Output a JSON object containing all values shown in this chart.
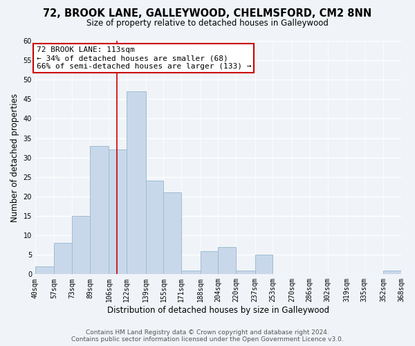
{
  "title": "72, BROOK LANE, GALLEYWOOD, CHELMSFORD, CM2 8NN",
  "subtitle": "Size of property relative to detached houses in Galleywood",
  "xlabel": "Distribution of detached houses by size in Galleywood",
  "ylabel": "Number of detached properties",
  "bar_color": "#c8d8ea",
  "bar_edge_color": "#a0bcd0",
  "bin_edges": [
    40,
    57,
    73,
    89,
    106,
    122,
    139,
    155,
    171,
    188,
    204,
    220,
    237,
    253,
    270,
    286,
    302,
    319,
    335,
    352,
    368
  ],
  "bin_labels": [
    "40sqm",
    "57sqm",
    "73sqm",
    "89sqm",
    "106sqm",
    "122sqm",
    "139sqm",
    "155sqm",
    "171sqm",
    "188sqm",
    "204sqm",
    "220sqm",
    "237sqm",
    "253sqm",
    "270sqm",
    "286sqm",
    "302sqm",
    "319sqm",
    "335sqm",
    "352sqm",
    "368sqm"
  ],
  "counts": [
    2,
    8,
    15,
    33,
    32,
    47,
    24,
    21,
    1,
    6,
    7,
    1,
    5,
    0,
    0,
    0,
    0,
    0,
    0,
    1
  ],
  "marker_value": 113,
  "marker_label": "72 BROOK LANE: 113sqm",
  "annotation_line1": "← 34% of detached houses are smaller (68)",
  "annotation_line2": "66% of semi-detached houses are larger (133) →",
  "annotation_box_color": "#ffffff",
  "annotation_box_edgecolor": "#cc0000",
  "marker_line_color": "#cc0000",
  "ylim": [
    0,
    60
  ],
  "yticks": [
    0,
    5,
    10,
    15,
    20,
    25,
    30,
    35,
    40,
    45,
    50,
    55,
    60
  ],
  "footer_line1": "Contains HM Land Registry data © Crown copyright and database right 2024.",
  "footer_line2": "Contains public sector information licensed under the Open Government Licence v3.0.",
  "background_color": "#f0f4f8",
  "title_fontsize": 10.5,
  "subtitle_fontsize": 8.5,
  "axis_label_fontsize": 8.5,
  "tick_fontsize": 7,
  "annotation_fontsize": 8,
  "footer_fontsize": 6.5
}
